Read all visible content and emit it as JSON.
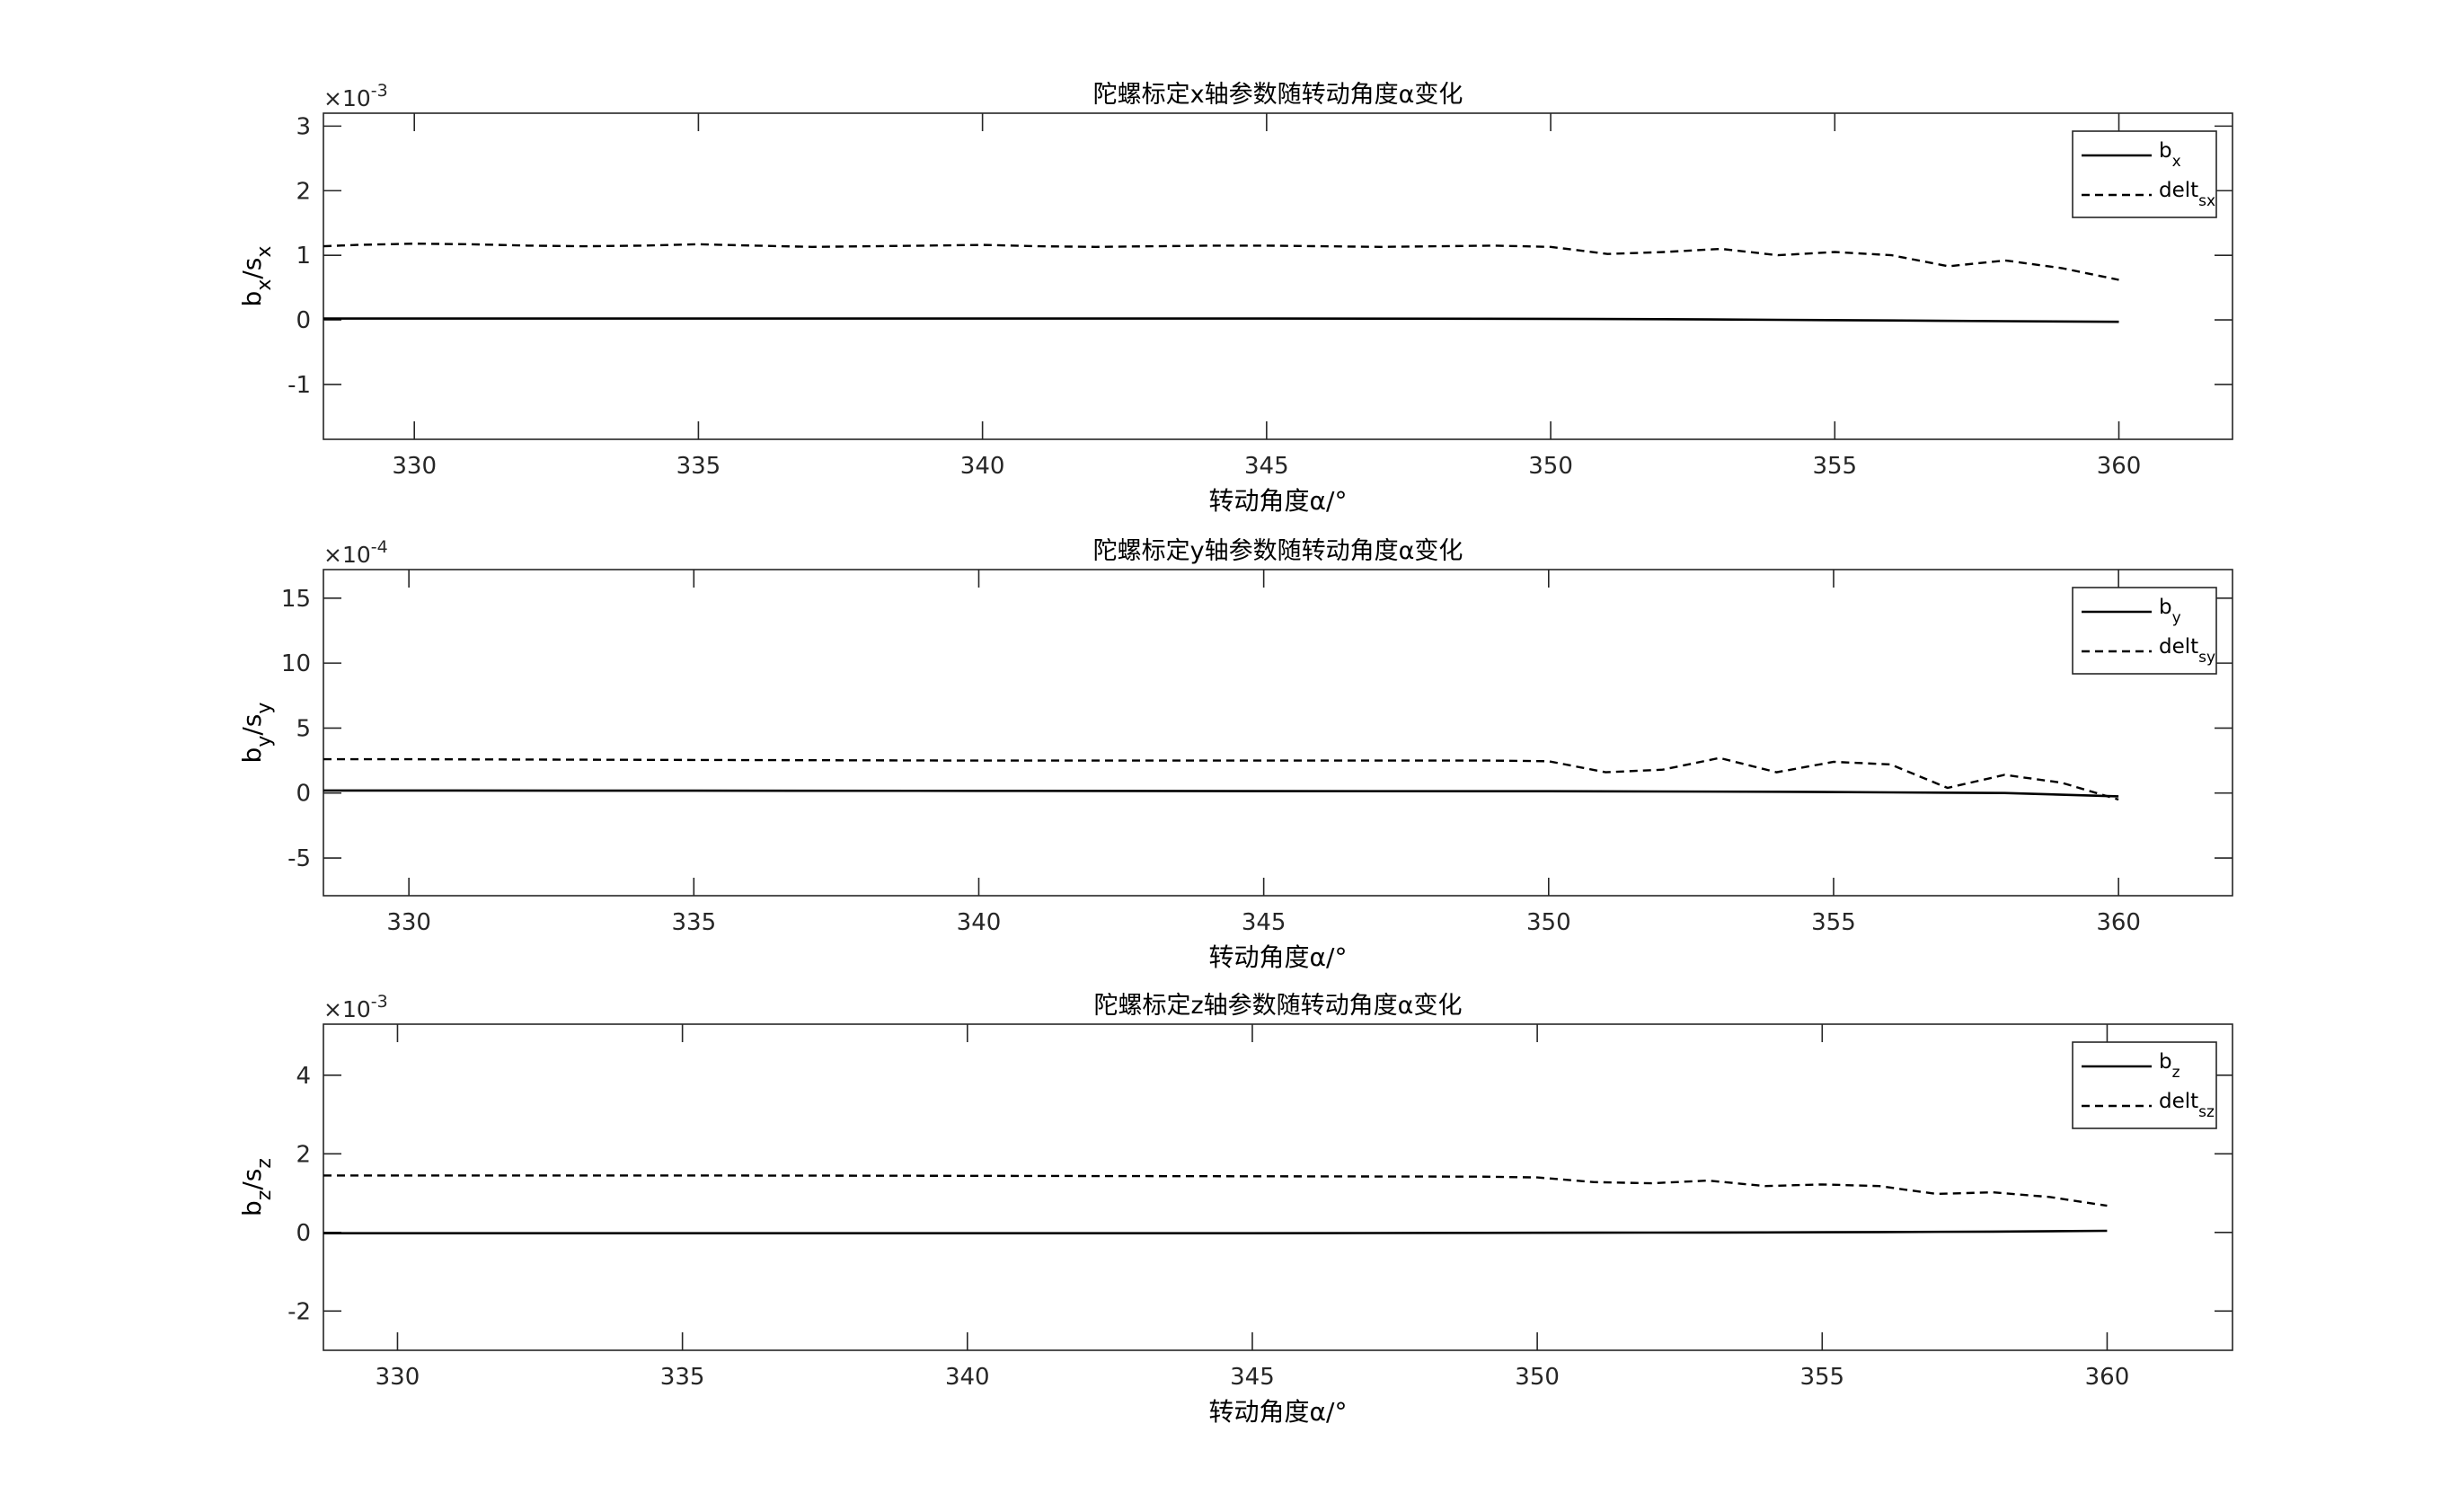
{
  "chart_data": [
    {
      "type": "line",
      "title": "陀螺标定x轴参数随转动角度α变化",
      "xlabel": "转动角度α/°",
      "ylabel": {
        "base1": "b",
        "sub1": "x",
        "sep": "/s",
        "sub2": "x"
      },
      "exponent": {
        "base": "×10",
        "power": "-3"
      },
      "xlim": [
        328.4,
        362.0
      ],
      "ylim": [
        -1.85,
        3.2
      ],
      "xticks": [
        330,
        335,
        340,
        345,
        350,
        355,
        360
      ],
      "yticks": [
        -1,
        0,
        1,
        2,
        3
      ],
      "legend": "top-right",
      "series": [
        {
          "name": "b",
          "name_sub": "x",
          "style": "solid",
          "x": [
            328.4,
            335,
            340,
            345,
            350,
            352,
            354,
            356,
            358,
            360
          ],
          "y": [
            0.02,
            0.02,
            0.02,
            0.02,
            0.015,
            0.01,
            0.0,
            -0.01,
            -0.02,
            -0.03
          ]
        },
        {
          "name": "delt",
          "name_sub": "sx",
          "style": "dashed",
          "x": [
            328.4,
            329,
            330,
            331,
            332,
            333,
            334,
            335,
            336,
            337,
            338,
            339,
            340,
            341,
            342,
            343,
            344,
            345,
            346,
            347,
            348,
            349,
            350,
            351,
            352,
            353,
            354,
            355,
            356,
            357,
            358,
            359,
            360
          ],
          "y": [
            1.14,
            1.16,
            1.18,
            1.17,
            1.15,
            1.14,
            1.15,
            1.17,
            1.15,
            1.13,
            1.14,
            1.15,
            1.16,
            1.14,
            1.13,
            1.14,
            1.15,
            1.15,
            1.14,
            1.13,
            1.14,
            1.15,
            1.13,
            1.02,
            1.05,
            1.1,
            1.0,
            1.05,
            1.0,
            0.83,
            0.92,
            0.8,
            0.62
          ]
        }
      ]
    },
    {
      "type": "line",
      "title": "陀螺标定y轴参数随转动角度α变化",
      "xlabel": "转动角度α/°",
      "ylabel": {
        "base1": "b",
        "sub1": "y",
        "sep": "/s",
        "sub2": "y"
      },
      "exponent": {
        "base": "×10",
        "power": "-4"
      },
      "xlim": [
        328.5,
        362.0
      ],
      "ylim": [
        -7.9,
        17.2
      ],
      "xticks": [
        330,
        335,
        340,
        345,
        350,
        355,
        360
      ],
      "yticks": [
        -5,
        0,
        5,
        10,
        15
      ],
      "legend": "top-right",
      "series": [
        {
          "name": "b",
          "name_sub": "y",
          "style": "solid",
          "x": [
            328.5,
            335,
            340,
            345,
            350,
            352,
            354,
            356,
            358,
            360
          ],
          "y": [
            0.2,
            0.18,
            0.17,
            0.15,
            0.14,
            0.12,
            0.1,
            0.05,
            0.0,
            -0.25
          ]
        },
        {
          "name": "delt",
          "name_sub": "sy",
          "style": "dashed",
          "x": [
            328.5,
            330,
            335,
            340,
            345,
            349,
            350,
            351,
            352,
            353,
            354,
            355,
            356,
            357,
            358,
            359,
            360
          ],
          "y": [
            2.6,
            2.6,
            2.55,
            2.5,
            2.5,
            2.5,
            2.45,
            1.6,
            1.8,
            2.7,
            1.6,
            2.4,
            2.2,
            0.4,
            1.4,
            0.8,
            -0.5
          ]
        }
      ]
    },
    {
      "type": "line",
      "title": "陀螺标定z轴参数随转动角度α变化",
      "xlabel": "转动角度α/°",
      "ylabel": {
        "base1": "b",
        "sub1": "z",
        "sep": "/s",
        "sub2": "z"
      },
      "exponent": {
        "base": "×10",
        "power": "-3"
      },
      "xlim": [
        328.7,
        362.2
      ],
      "ylim": [
        -3.0,
        5.3
      ],
      "xticks": [
        330,
        335,
        340,
        345,
        350,
        355,
        360
      ],
      "yticks": [
        -2,
        0,
        2,
        4
      ],
      "legend": "top-right",
      "series": [
        {
          "name": "b",
          "name_sub": "z",
          "style": "solid",
          "x": [
            328.7,
            335,
            340,
            345,
            350,
            352,
            354,
            356,
            358,
            360
          ],
          "y": [
            -0.02,
            -0.02,
            -0.02,
            -0.02,
            -0.01,
            -0.005,
            0.0,
            0.01,
            0.02,
            0.04
          ]
        },
        {
          "name": "delt",
          "name_sub": "sz",
          "style": "dashed",
          "x": [
            328.7,
            330,
            335,
            340,
            345,
            349,
            350,
            351,
            352,
            353,
            354,
            355,
            356,
            357,
            358,
            359,
            360
          ],
          "y": [
            1.45,
            1.45,
            1.45,
            1.44,
            1.43,
            1.42,
            1.4,
            1.28,
            1.25,
            1.32,
            1.18,
            1.22,
            1.18,
            0.98,
            1.02,
            0.9,
            0.68
          ]
        }
      ]
    }
  ]
}
